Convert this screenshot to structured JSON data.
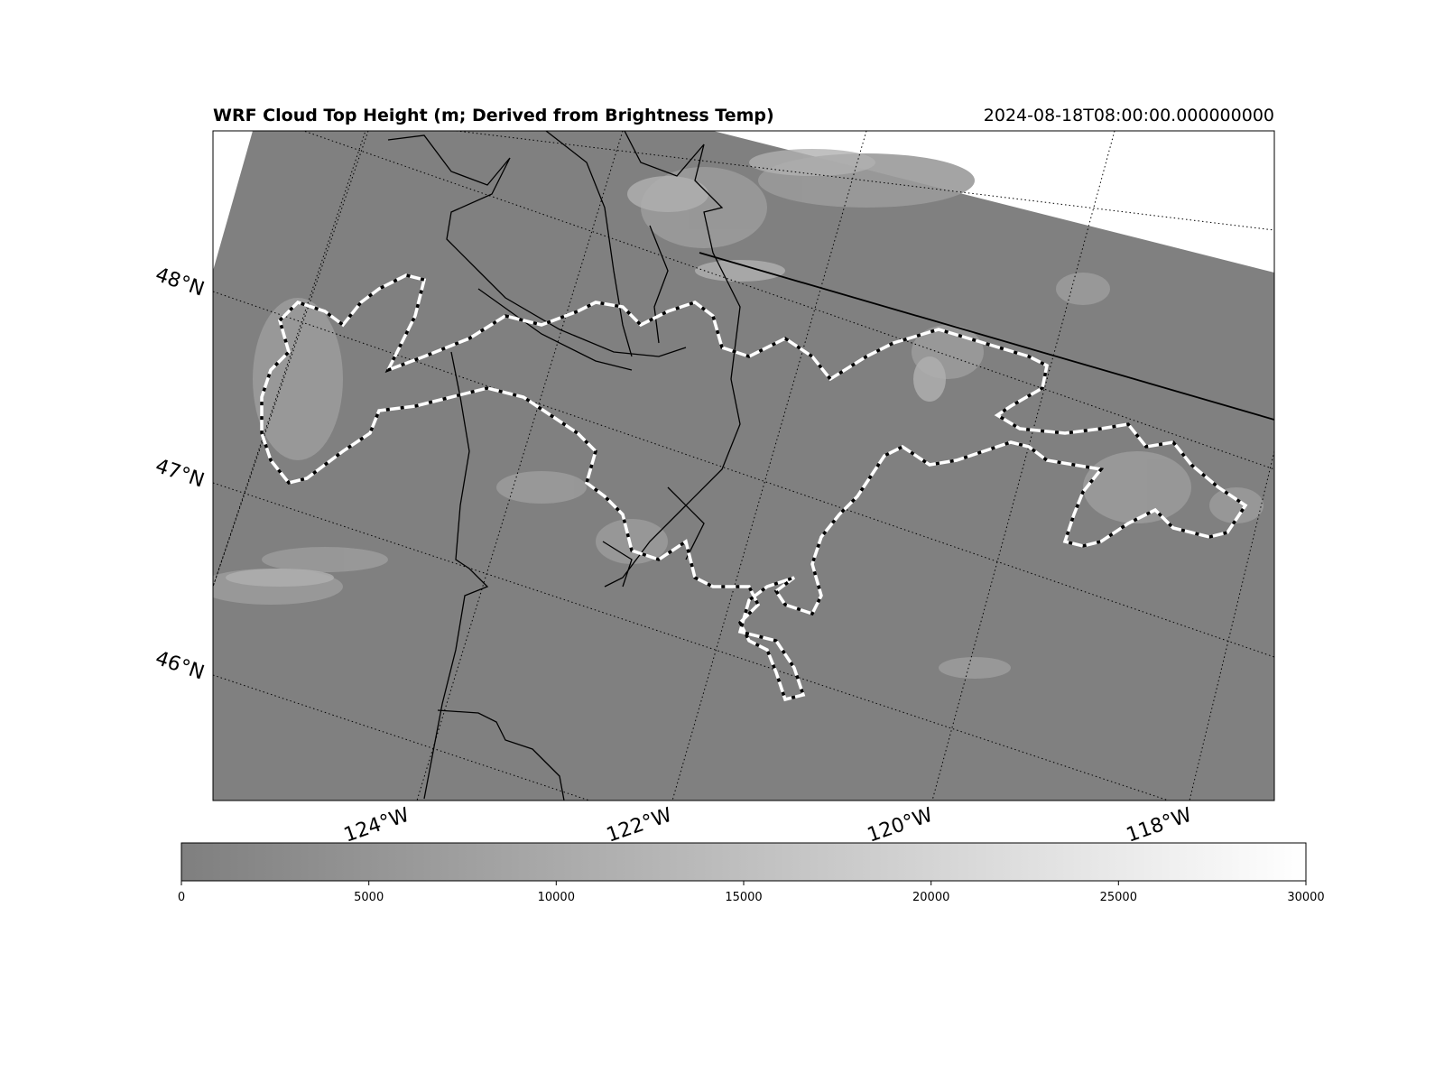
{
  "header": {
    "title": "WRF Cloud Top Height (m; Derived from Brightness Temp)",
    "valid_time": "2024-08-18T08:00:00.000000000"
  },
  "map": {
    "lat_labels": [
      "48°N",
      "47°N",
      "46°N"
    ],
    "lon_labels": [
      "124°W",
      "122°W",
      "120°W",
      "118°W"
    ],
    "field_color_low": "#7f7f7f",
    "field_color_high": "#ffffff",
    "outline_style": "white-black dashed contour",
    "coastline_color": "#000000"
  },
  "colorbar": {
    "min": 0,
    "max": 30000,
    "ticks": [
      "0",
      "5000",
      "10000",
      "15000",
      "20000",
      "25000",
      "30000"
    ],
    "color_low": "#7f7f7f",
    "color_high": "#ffffff"
  }
}
